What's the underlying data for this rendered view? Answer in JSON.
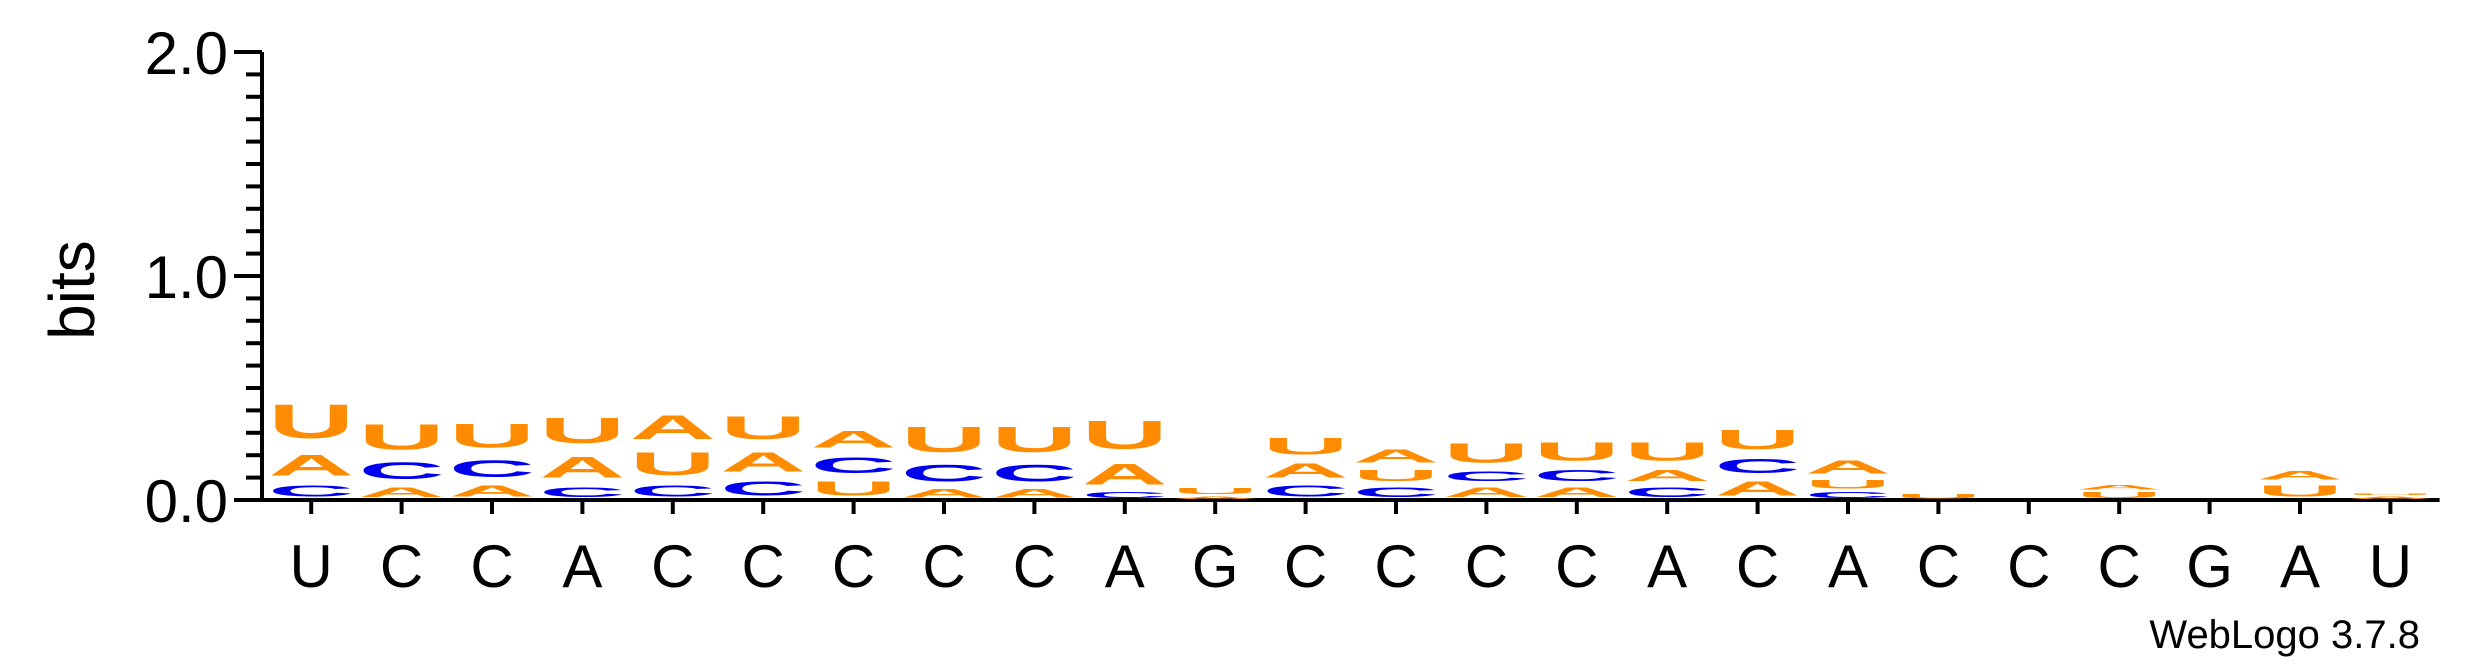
{
  "chart_data": {
    "type": "sequence-logo",
    "ylabel": "bits",
    "ylim": [
      0,
      2.0
    ],
    "yticks": [
      "0.0",
      "1.0",
      "2.0"
    ],
    "x_labels": [
      "U",
      "C",
      "C",
      "A",
      "C",
      "C",
      "C",
      "C",
      "C",
      "A",
      "G",
      "C",
      "C",
      "C",
      "C",
      "A",
      "C",
      "A",
      "C",
      "C",
      "C",
      "G",
      "A",
      "U"
    ],
    "footer": "WebLogo 3.7.8",
    "colors": {
      "A": "#FF8C00",
      "U": "#FF8C00",
      "C": "#0000EE",
      "G": "#FF8C00"
    },
    "stacks": [
      [
        [
          "C",
          0.08
        ],
        [
          "A",
          0.15
        ],
        [
          "U",
          0.24
        ]
      ],
      [
        [
          "A",
          0.07
        ],
        [
          "C",
          0.12
        ],
        [
          "U",
          0.18
        ]
      ],
      [
        [
          "A",
          0.08
        ],
        [
          "C",
          0.12
        ],
        [
          "U",
          0.17
        ]
      ],
      [
        [
          "C",
          0.07
        ],
        [
          "A",
          0.15
        ],
        [
          "U",
          0.18
        ]
      ],
      [
        [
          "C",
          0.08
        ],
        [
          "U",
          0.16
        ],
        [
          "A",
          0.17
        ]
      ],
      [
        [
          "C",
          0.1
        ],
        [
          "A",
          0.14
        ],
        [
          "U",
          0.16
        ]
      ],
      [
        [
          "U",
          0.1
        ],
        [
          "C",
          0.11
        ],
        [
          "A",
          0.12
        ]
      ],
      [
        [
          "A",
          0.06
        ],
        [
          "C",
          0.12
        ],
        [
          "U",
          0.18
        ]
      ],
      [
        [
          "A",
          0.06
        ],
        [
          "C",
          0.12
        ],
        [
          "U",
          0.18
        ]
      ],
      [
        [
          "C",
          0.04
        ],
        [
          "A",
          0.15
        ],
        [
          "U",
          0.2
        ]
      ],
      [
        [
          "A",
          0.02
        ],
        [
          "U",
          0.04
        ]
      ],
      [
        [
          "C",
          0.08
        ],
        [
          "A",
          0.1
        ],
        [
          "U",
          0.12
        ]
      ],
      [
        [
          "C",
          0.07
        ],
        [
          "U",
          0.08
        ],
        [
          "A",
          0.09
        ]
      ],
      [
        [
          "A",
          0.07
        ],
        [
          "C",
          0.07
        ],
        [
          "U",
          0.14
        ]
      ],
      [
        [
          "A",
          0.07
        ],
        [
          "C",
          0.08
        ],
        [
          "U",
          0.13
        ]
      ],
      [
        [
          "C",
          0.07
        ],
        [
          "A",
          0.08
        ],
        [
          "U",
          0.13
        ]
      ],
      [
        [
          "A",
          0.1
        ],
        [
          "C",
          0.1
        ],
        [
          "U",
          0.14
        ]
      ],
      [
        [
          "C",
          0.04
        ],
        [
          "U",
          0.06
        ],
        [
          "A",
          0.09
        ]
      ],
      [
        [
          "U",
          0.03
        ]
      ],
      [],
      [
        [
          "U",
          0.04
        ],
        [
          "A",
          0.03
        ]
      ],
      [],
      [
        [
          "U",
          0.08
        ],
        [
          "A",
          0.06
        ]
      ],
      [
        [
          "A",
          0.02
        ],
        [
          "U",
          0.01
        ]
      ]
    ]
  }
}
